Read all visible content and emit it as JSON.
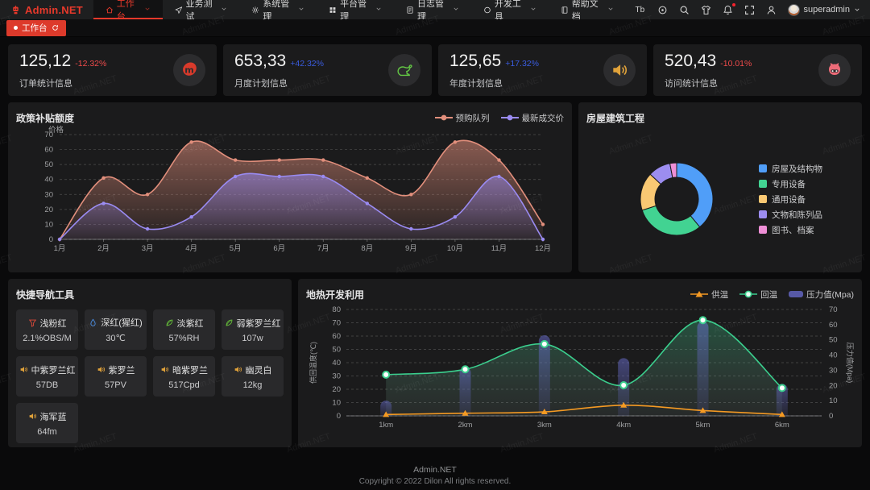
{
  "app": {
    "logo": "Admin.NET",
    "watermark": "Admin.NET"
  },
  "theme": {
    "accent": "#dd3a2b",
    "up_color": "#3a5ce0",
    "down_color": "#ef4b4b",
    "background": "#0a0a0b",
    "card": "#1b1b1c",
    "navbar": "#1e1f20"
  },
  "navbar": {
    "items": [
      {
        "label": "工作台",
        "icon": "home-icon",
        "active": true
      },
      {
        "label": "业务测试",
        "icon": "paper-plane-icon",
        "active": false
      },
      {
        "label": "系统管理",
        "icon": "gear-icon",
        "active": false
      },
      {
        "label": "平台管理",
        "icon": "grid-icon",
        "active": false
      },
      {
        "label": "日志管理",
        "icon": "log-icon",
        "active": false
      },
      {
        "label": "开发工具",
        "icon": "circle-icon",
        "active": false
      },
      {
        "label": "帮助文档",
        "icon": "book-icon",
        "active": false
      }
    ],
    "right_icons": [
      {
        "name": "font-size-icon",
        "text": "Tb"
      },
      {
        "name": "version-icon"
      },
      {
        "name": "search-icon"
      },
      {
        "name": "theme-skin-icon"
      },
      {
        "name": "bell-icon",
        "badge": true
      },
      {
        "name": "fullscreen-icon"
      },
      {
        "name": "profile-icon"
      }
    ],
    "user": {
      "name": "superadmin"
    }
  },
  "tabbar": {
    "tabs": [
      {
        "label": "工作台"
      }
    ]
  },
  "stats": [
    {
      "value": "125,12",
      "delta": "-12.32%",
      "trend": "down",
      "label": "订单统计信息",
      "icon": "meetup-icon",
      "icon_color": "#d93a2b"
    },
    {
      "value": "653,33",
      "delta": "+42.32%",
      "trend": "up",
      "label": "月度计划信息",
      "icon": "animal-icon",
      "icon_color": "#63c744"
    },
    {
      "value": "125,65",
      "delta": "+17.32%",
      "trend": "up",
      "label": "年度计划信息",
      "icon": "speaker-icon",
      "icon_color": "#e0a23a"
    },
    {
      "value": "520,43",
      "delta": "-10.01%",
      "trend": "down",
      "label": "访问统计信息",
      "icon": "cat-icon",
      "icon_color": "#ee6b78"
    }
  ],
  "panels": {
    "shortcuts": {
      "title": "快捷导航工具",
      "items": [
        {
          "label": "浅粉红",
          "value": "2.1%OBS/M",
          "icon": "funnel-icon",
          "color": "#e04a3a"
        },
        {
          "label": "深红(猩红)",
          "value": "30℃",
          "icon": "drop-icon",
          "color": "#4a8fe8"
        },
        {
          "label": "淡紫红",
          "value": "57%RH",
          "icon": "leaf-icon",
          "color": "#67c23a"
        },
        {
          "label": "弱紫罗兰红",
          "value": "107w",
          "icon": "leaf-icon",
          "color": "#67c23a"
        },
        {
          "label": "中紫罗兰红",
          "value": "57DB",
          "icon": "speaker-icon",
          "color": "#e0a23a"
        },
        {
          "label": "紫罗兰",
          "value": "57PV",
          "icon": "speaker-icon",
          "color": "#e0a23a"
        },
        {
          "label": "暗紫罗兰",
          "value": "517Cpd",
          "icon": "speaker-icon",
          "color": "#e0a23a"
        },
        {
          "label": "幽灵白",
          "value": "12kg",
          "icon": "speaker-icon",
          "color": "#e0a23a"
        },
        {
          "label": "海军蓝",
          "value": "64fm",
          "icon": "speaker-icon",
          "color": "#e0a23a"
        }
      ]
    }
  },
  "chart_data": [
    {
      "id": "subsidy",
      "type": "line",
      "title": "政策补贴额度",
      "ylabel": "价格",
      "ylim": [
        0,
        70
      ],
      "ytick": 10,
      "grid": true,
      "legend_position": "top-right",
      "categories": [
        "1月",
        "2月",
        "3月",
        "4月",
        "5月",
        "6月",
        "7月",
        "8月",
        "9月",
        "10月",
        "11月",
        "12月"
      ],
      "series": [
        {
          "name": "预购队列",
          "color": "#e28f7c",
          "values": [
            0,
            41,
            30,
            65,
            53,
            53,
            53,
            41,
            30,
            65,
            53,
            10
          ]
        },
        {
          "name": "最新成交价",
          "color": "#9a8bf2",
          "values": [
            0,
            24,
            7,
            15,
            42,
            42,
            42,
            24,
            7,
            15,
            42,
            0
          ]
        }
      ]
    },
    {
      "id": "building",
      "type": "pie",
      "title": "房屋建筑工程",
      "legend_position": "right",
      "slices": [
        {
          "name": "房屋及结构物",
          "value": 39,
          "color": "#509ef8"
        },
        {
          "name": "专用设备",
          "value": 31,
          "color": "#42d392"
        },
        {
          "name": "通用设备",
          "value": 17,
          "color": "#f9c873"
        },
        {
          "name": "文物和陈列品",
          "value": 10,
          "color": "#9c8df0"
        },
        {
          "name": "图书、档案",
          "value": 3,
          "color": "#ee8fd6"
        }
      ]
    },
    {
      "id": "geothermal",
      "type": "mixed",
      "title": "地热开发利用",
      "legend_position": "top-right",
      "grid": true,
      "categories": [
        "1km",
        "2km",
        "3km",
        "4km",
        "5km",
        "6km"
      ],
      "left_axis": {
        "label": "供回温度(℃)",
        "min": 0,
        "max": 80,
        "tick": 10
      },
      "right_axis": {
        "label": "压力值(Mpa)",
        "min": 0,
        "max": 70,
        "tick": 10
      },
      "series": [
        {
          "name": "供温",
          "type": "line",
          "axis": "left",
          "color": "#f59a23",
          "marker": "triangle",
          "values": [
            1,
            2,
            3,
            8,
            4,
            1
          ]
        },
        {
          "name": "回温",
          "type": "line",
          "axis": "left",
          "color": "#3bcf8e",
          "marker": "circle",
          "area": true,
          "values": [
            31,
            35,
            54,
            23,
            72,
            21
          ]
        },
        {
          "name": "压力值(Mpa)",
          "type": "bar",
          "axis": "right",
          "color": "#6164be",
          "values": [
            10,
            32,
            53,
            38,
            62,
            21
          ]
        }
      ]
    }
  ],
  "footer": {
    "line1": "Admin.NET",
    "line2": "Copyright © 2022 Dilon All rights reserved."
  }
}
